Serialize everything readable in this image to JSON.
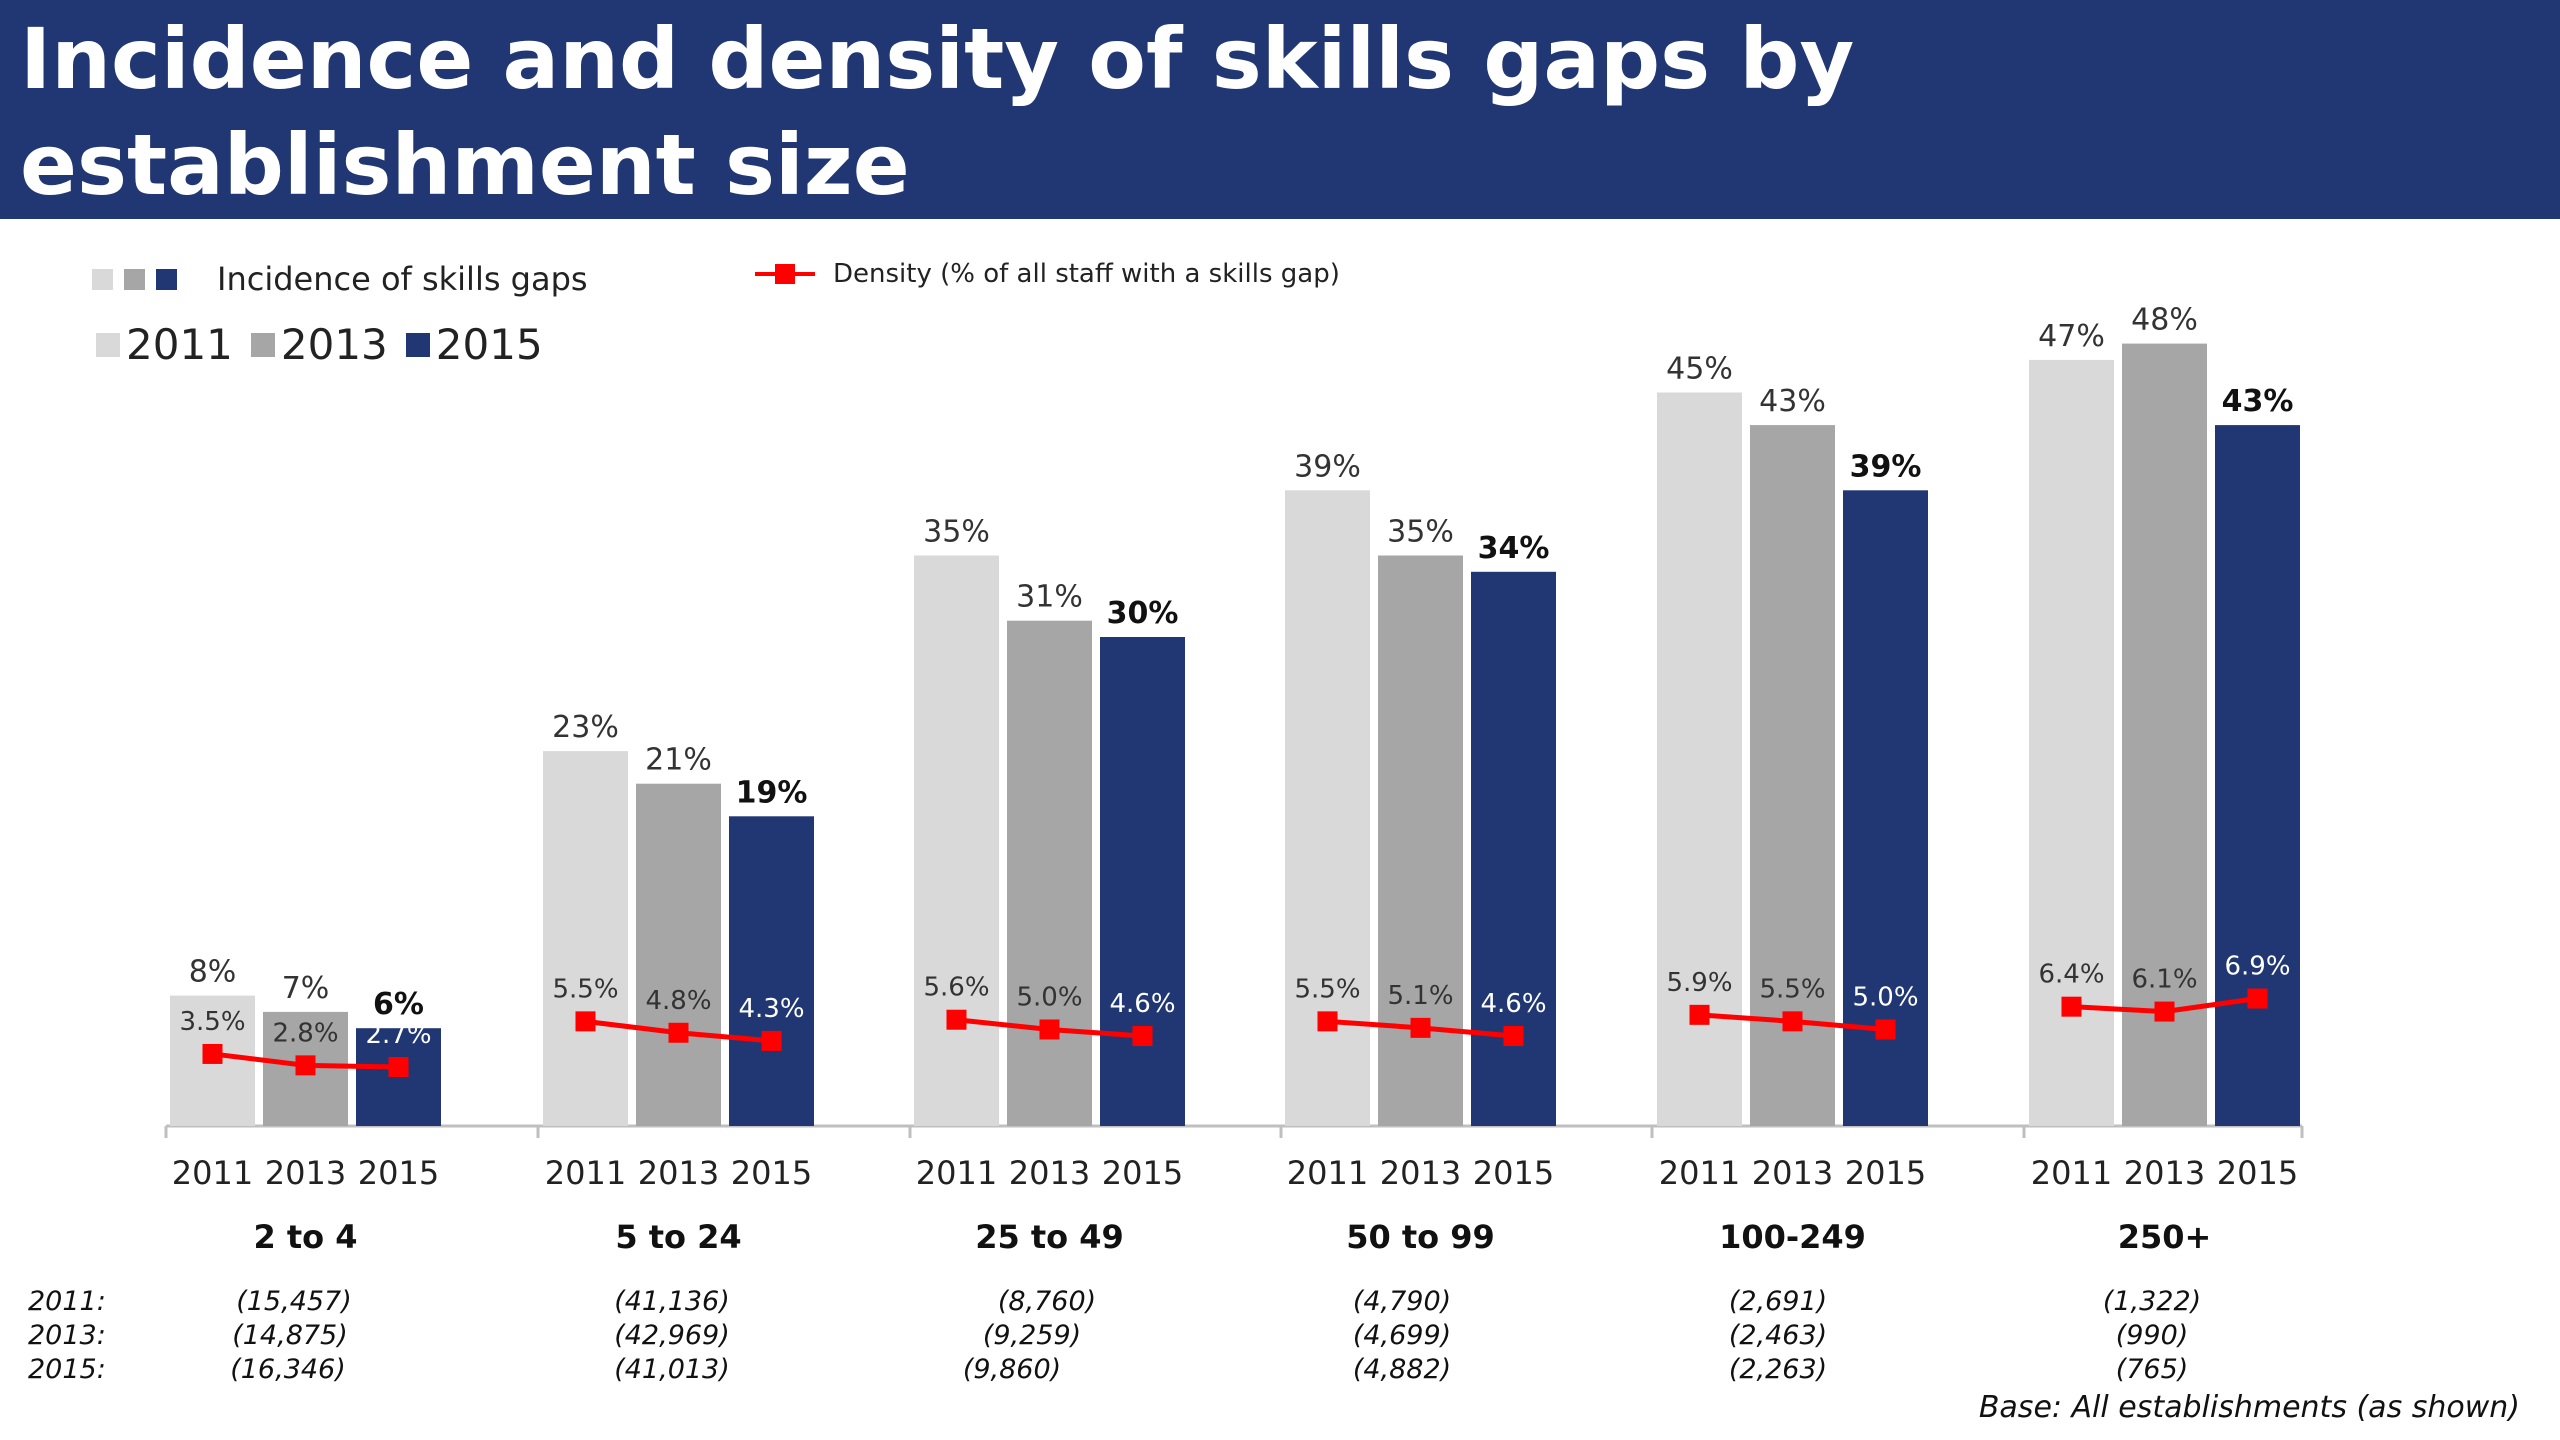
{
  "title": "Incidence and density of skills gaps by establishment size",
  "legend": {
    "incidence_label": "Incidence of skills gaps",
    "density_label": "Density (% of all staff with a skills gap)",
    "years": [
      "2011",
      "2013",
      "2015"
    ]
  },
  "colors": {
    "header_bg": "#213773",
    "bar_2011": "#d9d9d9",
    "bar_2013": "#a6a6a6",
    "bar_2015": "#213773",
    "density_line": "#ff0000"
  },
  "chart_data": {
    "type": "bar",
    "title": "Incidence and density of skills gaps by establishment size",
    "categories": [
      "2 to 4",
      "5 to 24",
      "25 to 49",
      "50 to 99",
      "100-249",
      "250+"
    ],
    "sub_categories": [
      "2011",
      "2013",
      "2015"
    ],
    "series": [
      {
        "name": "2011",
        "values": [
          8,
          23,
          35,
          39,
          45,
          47
        ]
      },
      {
        "name": "2013",
        "values": [
          7,
          21,
          31,
          35,
          43,
          48
        ]
      },
      {
        "name": "2015",
        "values": [
          6,
          19,
          30,
          34,
          39,
          43
        ]
      }
    ],
    "bar_labels": [
      [
        "8%",
        "7%",
        "6%"
      ],
      [
        "23%",
        "21%",
        "19%"
      ],
      [
        "35%",
        "31%",
        "30%"
      ],
      [
        "39%",
        "35%",
        "34%"
      ],
      [
        "45%",
        "43%",
        "39%"
      ],
      [
        "47%",
        "48%",
        "43%"
      ]
    ],
    "density": {
      "name": "Density (% of all staff with a skills gap)",
      "values": [
        [
          3.5,
          2.8,
          2.7
        ],
        [
          5.5,
          4.8,
          4.3
        ],
        [
          5.6,
          5.0,
          4.6
        ],
        [
          5.5,
          5.1,
          4.6
        ],
        [
          5.9,
          5.5,
          5.0
        ],
        [
          6.4,
          6.1,
          6.9
        ]
      ],
      "labels": [
        [
          "3.5%",
          "2.8%",
          "2.7%"
        ],
        [
          "5.5%",
          "4.8%",
          "4.3%"
        ],
        [
          "5.6%",
          "5.0%",
          "4.6%"
        ],
        [
          "5.5%",
          "5.1%",
          "4.6%"
        ],
        [
          "5.9%",
          "5.5%",
          "5.0%"
        ],
        [
          "6.4%",
          "6.1%",
          "6.9%"
        ]
      ]
    },
    "y_unit": "%",
    "ylim": [
      0,
      50
    ],
    "legend_position": "top-left"
  },
  "bases": {
    "labels": [
      "2011:",
      "2013:",
      "2015:"
    ],
    "values": [
      [
        "(15,457)",
        "(14,875)",
        "(16,346)"
      ],
      [
        "(41,136)",
        "(42,969)",
        "(41,013)"
      ],
      [
        "(8,760)",
        "(9,259)",
        "(9,860)"
      ],
      [
        "(4,790)",
        "(4,699)",
        "(4,882)"
      ],
      [
        "(2,691)",
        "(2,463)",
        "(2,263)"
      ],
      [
        "(1,322)",
        "(990)",
        "(765)"
      ]
    ],
    "note": "Base: All establishments (as shown)"
  }
}
